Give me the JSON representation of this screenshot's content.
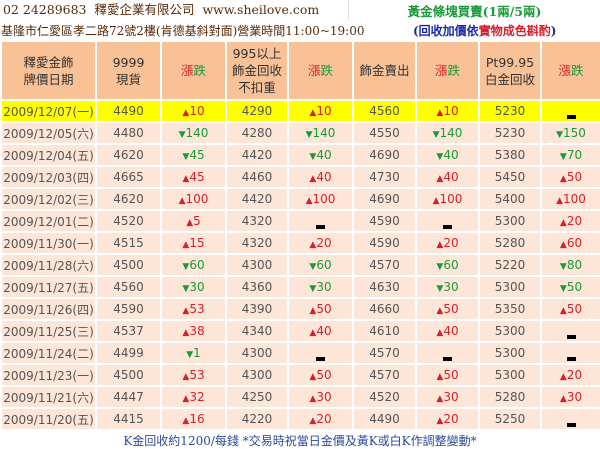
{
  "header": {
    "phone": "02 24289683",
    "company": "釋愛企業有限公司",
    "website": "www.sheilove.com",
    "gold_bar": "黃金條塊買賣(1兩/5兩)",
    "address": "基隆市仁愛區孝二路72號2樓(肯德基斜對面)營業時間11:00~19:00",
    "note_part1": "(回收加價依",
    "note_part2": "實物成色斟酌",
    "note_part3": ")"
  },
  "columns": {
    "date": [
      "釋愛金飾",
      "牌價日期"
    ],
    "c9999": [
      "9999",
      "現貨"
    ],
    "rise": "漲",
    "fall": "跌",
    "recycle": [
      "995以上",
      "飾金回收",
      "不扣重"
    ],
    "sell": "飾金賣出",
    "pt": [
      "Pt99.95",
      "白金回收"
    ]
  },
  "colors": {
    "up": "#d8202a",
    "down": "#1a9a3a",
    "highlight": "#ffff00",
    "header_bg": "#f9c196",
    "row_bg": "#fde5d8"
  },
  "rows": [
    [
      "2009/12/07(一)",
      "4490",
      "up:10",
      "4290",
      "up:10",
      "4560",
      "up:10",
      "5230",
      "flat"
    ],
    [
      "2009/12/05(六)",
      "4480",
      "down:140",
      "4280",
      "down:140",
      "4550",
      "down:140",
      "5230",
      "down:150"
    ],
    [
      "2009/12/04(五)",
      "4620",
      "down:45",
      "4420",
      "down:40",
      "4690",
      "down:40",
      "5380",
      "down:70"
    ],
    [
      "2009/12/03(四)",
      "4665",
      "up:45",
      "4460",
      "up:40",
      "4730",
      "up:40",
      "5450",
      "up:50"
    ],
    [
      "2009/12/02(三)",
      "4620",
      "up:100",
      "4420",
      "up:100",
      "4690",
      "up:100",
      "5400",
      "up:100"
    ],
    [
      "2009/12/01(二)",
      "4520",
      "up:5",
      "4320",
      "flat",
      "4590",
      "flat",
      "5300",
      "up:20"
    ],
    [
      "2009/11/30(一)",
      "4515",
      "up:15",
      "4320",
      "up:20",
      "4590",
      "up:20",
      "5280",
      "up:60"
    ],
    [
      "2009/11/28(六)",
      "4500",
      "down:60",
      "4300",
      "down:60",
      "4570",
      "down:60",
      "5220",
      "down:80"
    ],
    [
      "2009/11/27(五)",
      "4560",
      "down:30",
      "4360",
      "down:30",
      "4630",
      "down:30",
      "5300",
      "down:50"
    ],
    [
      "2009/11/26(四)",
      "4590",
      "up:53",
      "4390",
      "up:50",
      "4660",
      "up:50",
      "5350",
      "up:50"
    ],
    [
      "2009/11/25(三)",
      "4537",
      "up:38",
      "4340",
      "up:40",
      "4610",
      "up:40",
      "5300",
      "flat"
    ],
    [
      "2009/11/24(二)",
      "4499",
      "down:1",
      "4300",
      "flat",
      "4570",
      "flat",
      "5300",
      "flat"
    ],
    [
      "2009/11/23(一)",
      "4500",
      "up:53",
      "4300",
      "up:50",
      "4570",
      "up:50",
      "5300",
      "up:20"
    ],
    [
      "2009/11/21(六)",
      "4447",
      "up:32",
      "4250",
      "up:30",
      "4520",
      "up:30",
      "5280",
      "up:30"
    ],
    [
      "2009/11/20(五)",
      "4415",
      "up:16",
      "4220",
      "up:20",
      "4490",
      "up:20",
      "5250",
      "flat"
    ]
  ],
  "footer": "K金回收約1200/每錢 *交易時祝當日金價及黃K或白K作調整變動*"
}
